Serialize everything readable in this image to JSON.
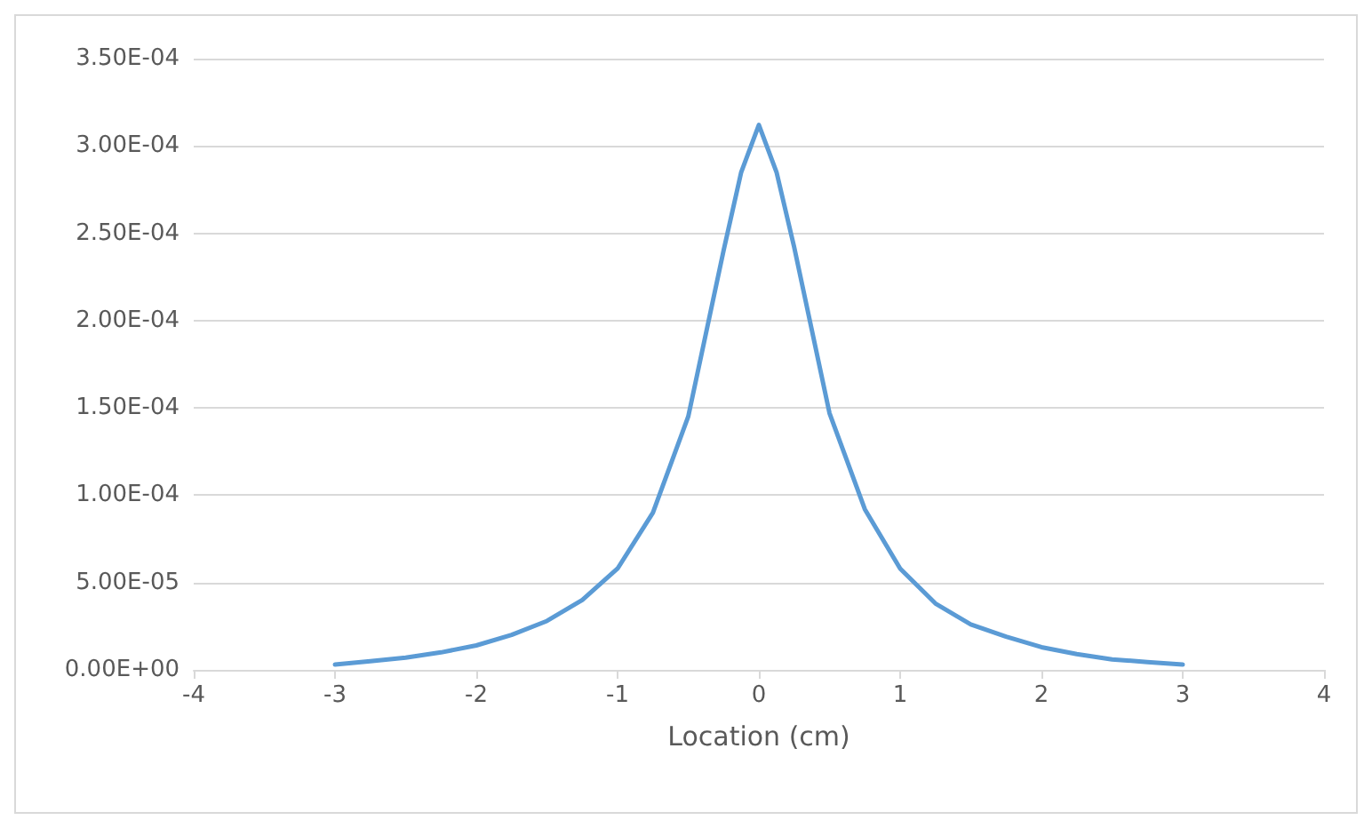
{
  "chart_data": {
    "type": "line",
    "xlabel": "Location (cm)",
    "x": [
      -3,
      -2.75,
      -2.5,
      -2.25,
      -2,
      -1.75,
      -1.5,
      -1.25,
      -1,
      -0.75,
      -0.5,
      -0.25,
      -0.125,
      0,
      0.125,
      0.25,
      0.5,
      0.75,
      1,
      1.25,
      1.5,
      1.75,
      2,
      2.25,
      2.5,
      2.75,
      3
    ],
    "series": [
      {
        "color": "#5b9bd5",
        "values": [
          3e-06,
          5e-06,
          7e-06,
          1e-05,
          1.4e-05,
          2e-05,
          2.8e-05,
          4e-05,
          5.8e-05,
          9e-05,
          0.000145,
          0.00024,
          0.000285,
          0.000312,
          0.000285,
          0.000242,
          0.000147,
          9.2e-05,
          5.8e-05,
          3.8e-05,
          2.6e-05,
          1.9e-05,
          1.3e-05,
          9e-06,
          6e-06,
          4.5e-06,
          3e-06
        ]
      }
    ],
    "xlim": [
      -4,
      4
    ],
    "xticks": [
      -4,
      -3,
      -2,
      -1,
      0,
      1,
      2,
      3,
      4
    ],
    "ylim": [
      0,
      0.00035
    ],
    "yticks": [
      {
        "value": 0,
        "label": "0.00E+00"
      },
      {
        "value": 5e-05,
        "label": "5.00E-05"
      },
      {
        "value": 0.0001,
        "label": "1.00E-04"
      },
      {
        "value": 0.00015,
        "label": "1.50E-04"
      },
      {
        "value": 0.0002,
        "label": "2.00E-04"
      },
      {
        "value": 0.00025,
        "label": "2.50E-04"
      },
      {
        "value": 0.0003,
        "label": "3.00E-04"
      },
      {
        "value": 0.00035,
        "label": "3.50E-04"
      }
    ],
    "grid": "y",
    "marker": "none",
    "line_style": "solid"
  }
}
